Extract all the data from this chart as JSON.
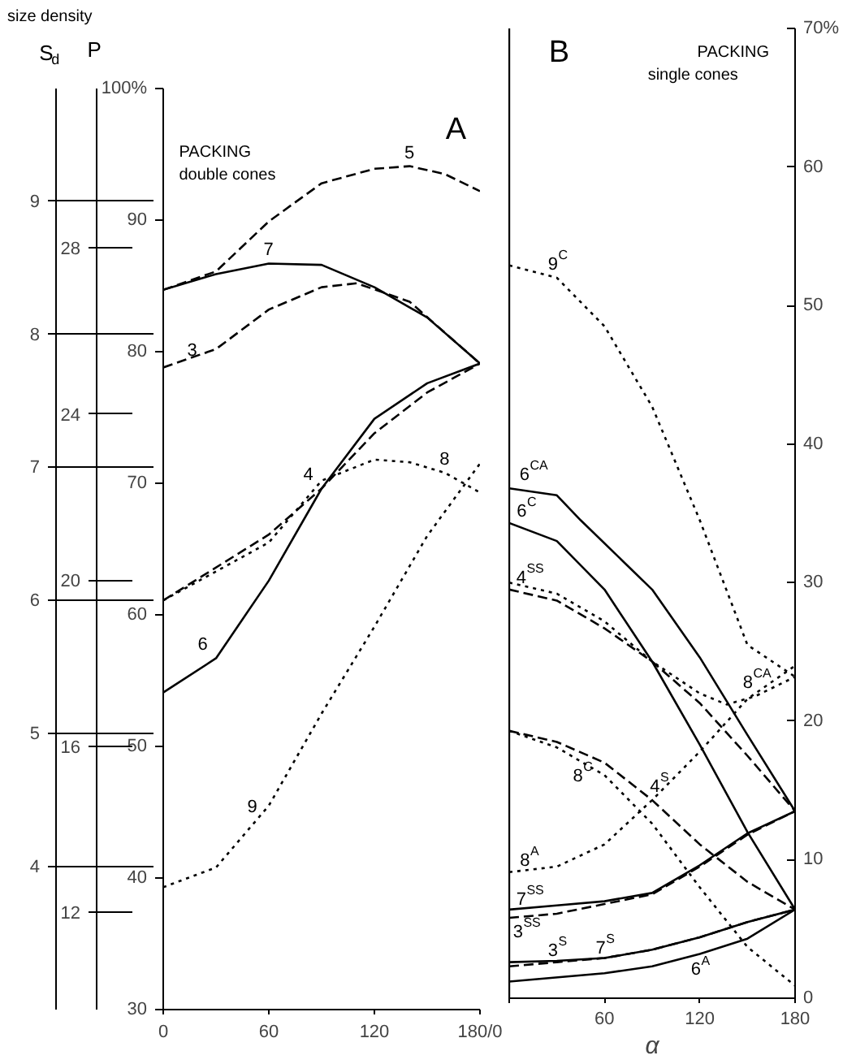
{
  "chart_data": [
    {
      "type": "line",
      "title": "A",
      "subtitle": "PACKING\ndouble cones",
      "annotations": [
        "size density"
      ],
      "grid": false,
      "xlim": [
        0,
        180
      ],
      "xticks": [
        0,
        60,
        120,
        {
          "value": 180,
          "label": "180/0"
        }
      ],
      "ylim": [
        30,
        100
      ],
      "yticks": [
        30,
        40,
        50,
        60,
        70,
        80,
        90,
        {
          "value": 100,
          "label": "100%"
        }
      ],
      "y2label": "P",
      "y2lim": [
        9.66,
        31.83
      ],
      "y2ticks": [
        12,
        16,
        20,
        24,
        28
      ],
      "y3label": "S$_{d}$",
      "y3lim": [
        2.92,
        9.84
      ],
      "y3ticks": [
        4,
        5,
        6,
        7,
        8,
        9
      ],
      "series": [
        {
          "name": "5",
          "color": "#000000",
          "line_style": "dashed",
          "x": [
            0,
            30,
            60,
            90,
            120,
            140,
            160,
            180
          ],
          "values": [
            84.7,
            86.1,
            89.9,
            92.8,
            93.9,
            94.1,
            93.5,
            92.2
          ]
        },
        {
          "name": "7",
          "color": "#000000",
          "line_style": "solid",
          "x": [
            0,
            30,
            60,
            90,
            120,
            150,
            180
          ],
          "values": [
            84.7,
            85.9,
            86.7,
            86.6,
            84.9,
            82.6,
            79.1
          ]
        },
        {
          "name": "3",
          "color": "#000000",
          "line_style": "dashed",
          "x": [
            0,
            30,
            60,
            90,
            110,
            140,
            180
          ],
          "values": [
            78.8,
            80.2,
            83.2,
            84.9,
            85.2,
            83.8,
            79.1
          ]
        },
        {
          "name": "4",
          "color": "#000000",
          "line_style": "dashed",
          "x": [
            0,
            60,
            90,
            120,
            150,
            180
          ],
          "values": [
            61.1,
            66.1,
            69.6,
            73.8,
            76.9,
            79.1
          ]
        },
        {
          "name": "6",
          "color": "#000000",
          "line_style": "solid",
          "x": [
            0,
            30,
            60,
            90,
            120,
            150,
            180
          ],
          "values": [
            54.1,
            56.7,
            62.6,
            69.6,
            74.9,
            77.6,
            79.1
          ]
        },
        {
          "name": "8",
          "color": "#000000",
          "line_style": "dotted",
          "x": [
            0,
            60,
            90,
            120,
            140,
            160,
            180
          ],
          "values": [
            61.1,
            65.5,
            70.2,
            71.8,
            71.6,
            70.8,
            69.3
          ]
        },
        {
          "name": "9",
          "color": "#000000",
          "line_style": "dotted",
          "x": [
            0,
            30,
            60,
            90,
            120,
            150,
            180
          ],
          "values": [
            39.3,
            40.8,
            45.5,
            52.5,
            59.1,
            66.0,
            71.5
          ]
        }
      ]
    },
    {
      "type": "line",
      "title": "B",
      "subtitle": "PACKING\nsingle cones",
      "xlabel": "α",
      "grid": false,
      "xlim": [
        0,
        180
      ],
      "xticks": [
        {
          "value": 0,
          "label": null
        },
        60,
        120,
        180
      ],
      "ylim": [
        0,
        70
      ],
      "yticks": [
        0,
        10,
        20,
        30,
        40,
        50,
        60,
        {
          "value": 70,
          "label": "70%"
        }
      ],
      "series": [
        {
          "name": "9$^{C}$",
          "color": "#000000",
          "line_style": "dotted",
          "x": [
            0,
            30,
            60,
            90,
            120,
            150,
            180
          ],
          "values": [
            52.9,
            52.0,
            48.5,
            42.7,
            34.5,
            25.5,
            23.2
          ]
        },
        {
          "name": "6$^{CA}$",
          "color": "#000000",
          "line_style": "solid",
          "x": [
            0,
            30,
            45,
            90,
            120,
            150,
            180
          ],
          "values": [
            36.8,
            36.3,
            34.5,
            29.5,
            24.6,
            19.0,
            13.5
          ]
        },
        {
          "name": "6$^{C}$",
          "color": "#000000",
          "line_style": "solid",
          "x": [
            0,
            30,
            60,
            90,
            120,
            150,
            180
          ],
          "values": [
            34.3,
            33.0,
            29.5,
            24.3,
            18.3,
            12.0,
            6.4
          ]
        },
        {
          "name": "4$^{SS}$",
          "color": "#000000",
          "line_style": "dashed",
          "x": [
            0,
            30,
            60,
            90,
            120,
            150,
            180
          ],
          "values": [
            29.5,
            28.7,
            26.7,
            24.3,
            21.3,
            17.5,
            13.5
          ]
        },
        {
          "name": "8$^{CA}$",
          "color": "#000000",
          "line_style": "dotted",
          "x": [
            0,
            30,
            60,
            90,
            120,
            137,
            155,
            180
          ],
          "values": [
            30.0,
            29.2,
            27.2,
            24.3,
            22.0,
            21.2,
            21.8,
            23.2
          ]
        },
        {
          "name": "8$^{C}$",
          "color": "#000000",
          "line_style": "dotted",
          "x": [
            0,
            30,
            60,
            90,
            120,
            150,
            180
          ],
          "values": [
            19.3,
            18.1,
            16.1,
            12.6,
            8.0,
            3.7,
            0.9
          ]
        },
        {
          "name": "4$^{S}$",
          "color": "#000000",
          "line_style": "dashed",
          "x": [
            0,
            30,
            60,
            90,
            120,
            150,
            180
          ],
          "values": [
            19.3,
            18.5,
            17.0,
            14.3,
            11.1,
            8.4,
            6.4
          ]
        },
        {
          "name": "8$^{A}$",
          "color": "#000000",
          "line_style": "dotted",
          "x": [
            0,
            30,
            60,
            90,
            120,
            150,
            180
          ],
          "values": [
            9.1,
            9.5,
            11.1,
            14.3,
            17.8,
            21.6,
            24.0
          ]
        },
        {
          "name": "7$^{SS}$",
          "color": "#000000",
          "line_style": "solid",
          "x": [
            0,
            30,
            60,
            90,
            120,
            150,
            180
          ],
          "values": [
            6.4,
            6.7,
            7.0,
            7.6,
            9.6,
            11.9,
            13.5
          ]
        },
        {
          "name": "3$^{SS}$",
          "color": "#000000",
          "line_style": "dashed",
          "x": [
            0,
            30,
            60,
            90,
            120,
            150,
            180
          ],
          "values": [
            5.8,
            6.1,
            6.8,
            7.5,
            9.5,
            11.8,
            13.5
          ]
        },
        {
          "name": "3$^{S}$",
          "color": "#000000",
          "line_style": "dashed",
          "x": [
            0,
            30,
            60,
            90,
            120,
            150,
            180
          ],
          "values": [
            2.3,
            2.6,
            2.9,
            3.5,
            4.4,
            5.5,
            6.4
          ]
        },
        {
          "name": "7$^{S}$",
          "color": "#000000",
          "line_style": "solid",
          "x": [
            0,
            30,
            60,
            90,
            120,
            150,
            180
          ],
          "values": [
            2.6,
            2.7,
            2.9,
            3.5,
            4.4,
            5.5,
            6.4
          ]
        },
        {
          "name": "6$^{A}$",
          "color": "#000000",
          "line_style": "solid",
          "x": [
            0,
            60,
            90,
            120,
            150,
            180
          ],
          "values": [
            1.2,
            1.8,
            2.3,
            3.2,
            4.3,
            6.4
          ]
        }
      ]
    }
  ]
}
